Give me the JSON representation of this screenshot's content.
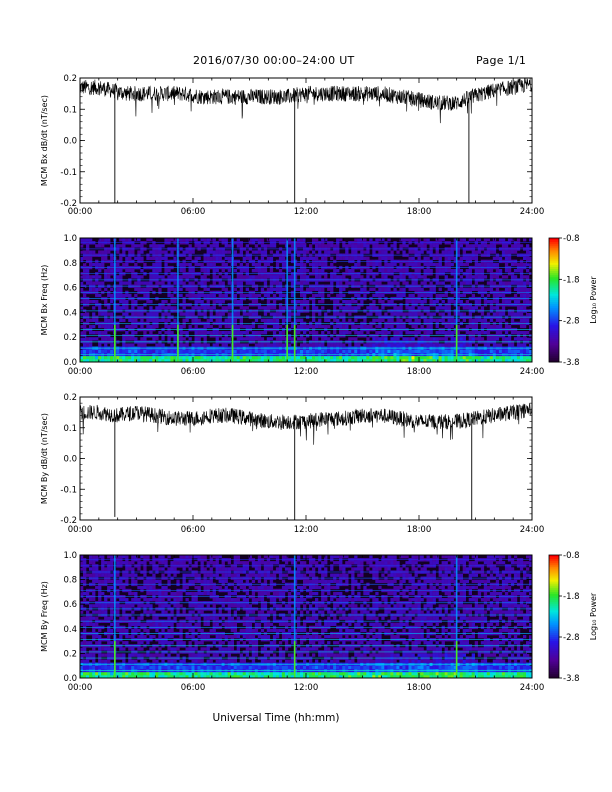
{
  "header": {
    "title": "2016/07/30  00:00–24:00 UT",
    "page": "Page 1/1"
  },
  "xaxis_label": "Universal Time (hh:mm)",
  "chart_data": [
    {
      "type": "line",
      "ylabel": "MCM Bx dB/dt (nT/sec)",
      "xlim": [
        0,
        24
      ],
      "ylim": [
        -0.2,
        0.2
      ],
      "x_tick_labels": [
        "00:00",
        "06:00",
        "12:00",
        "18:00",
        "24:00"
      ],
      "y_tick_labels": [
        "-0.2",
        "-0.1",
        "0.0",
        "0.1",
        "0.2"
      ],
      "series": [
        {
          "x": [
            0,
            1,
            1.7,
            2.5,
            3.5,
            4.5,
            5.5,
            6.5,
            8,
            9.5,
            11,
            12,
            13,
            14,
            15,
            16,
            17,
            18,
            19,
            20,
            20.8,
            22,
            23,
            24
          ],
          "y": [
            0.17,
            0.17,
            0.16,
            0.15,
            0.15,
            0.15,
            0.15,
            0.14,
            0.14,
            0.14,
            0.14,
            0.15,
            0.15,
            0.15,
            0.15,
            0.15,
            0.14,
            0.13,
            0.12,
            0.12,
            0.14,
            0.16,
            0.17,
            0.18
          ]
        }
      ],
      "annotations": [
        {
          "x": 1.85,
          "y": -0.2
        },
        {
          "x": 11.4,
          "y": -0.2
        },
        {
          "x": 20.65,
          "y": -0.2
        }
      ]
    },
    {
      "type": "heatmap",
      "ylabel": "MCM Bx Freq (Hz)",
      "xlim": [
        0,
        24
      ],
      "ylim": [
        0,
        1.0
      ],
      "x_tick_labels": [
        "00:00",
        "06:00",
        "12:00",
        "18:00",
        "24:00"
      ],
      "y_tick_labels": [
        "0.0",
        "0.2",
        "0.4",
        "0.6",
        "0.8",
        "1.0"
      ],
      "colorbar": {
        "label": "Log₁₀ Power",
        "range": [
          -3.8,
          -0.8
        ],
        "tick_labels": [
          "-0.8",
          "-1.8",
          "-2.8",
          "-3.8"
        ]
      },
      "bright_times": [
        1.85,
        5.2,
        8.1,
        11.0,
        11.4,
        20.0
      ]
    },
    {
      "type": "line",
      "ylabel": "MCM By dB/dt (nT/sec)",
      "xlim": [
        0,
        24
      ],
      "ylim": [
        -0.2,
        0.2
      ],
      "x_tick_labels": [
        "00:00",
        "06:00",
        "12:00",
        "18:00",
        "24:00"
      ],
      "y_tick_labels": [
        "-0.2",
        "-0.1",
        "0.0",
        "0.1",
        "0.2"
      ],
      "series": [
        {
          "x": [
            0,
            1,
            2,
            3,
            4,
            5,
            6,
            7,
            8,
            9,
            10,
            11,
            12,
            13,
            14,
            15,
            16,
            17,
            18,
            19,
            20,
            21,
            22,
            23,
            24
          ],
          "y": [
            0.15,
            0.15,
            0.14,
            0.15,
            0.14,
            0.13,
            0.13,
            0.14,
            0.14,
            0.13,
            0.12,
            0.12,
            0.12,
            0.13,
            0.13,
            0.14,
            0.14,
            0.13,
            0.12,
            0.12,
            0.12,
            0.13,
            0.14,
            0.15,
            0.16
          ]
        }
      ],
      "annotations": [
        {
          "x": 1.85,
          "y": -0.19
        },
        {
          "x": 11.4,
          "y": -0.2
        },
        {
          "x": 20.8,
          "y": -0.2
        }
      ]
    },
    {
      "type": "heatmap",
      "ylabel": "MCM By Freq (Hz)",
      "xlim": [
        0,
        24
      ],
      "ylim": [
        0,
        1.0
      ],
      "x_tick_labels": [
        "00:00",
        "06:00",
        "12:00",
        "18:00",
        "24:00"
      ],
      "y_tick_labels": [
        "0.0",
        "0.2",
        "0.4",
        "0.6",
        "0.8",
        "1.0"
      ],
      "colorbar": {
        "label": "Log₁₀ Power",
        "range": [
          -3.8,
          -0.8
        ],
        "tick_labels": [
          "-0.8",
          "-1.8",
          "-2.8",
          "-3.8"
        ]
      },
      "bright_times": [
        1.85,
        11.4,
        20.0
      ]
    }
  ]
}
